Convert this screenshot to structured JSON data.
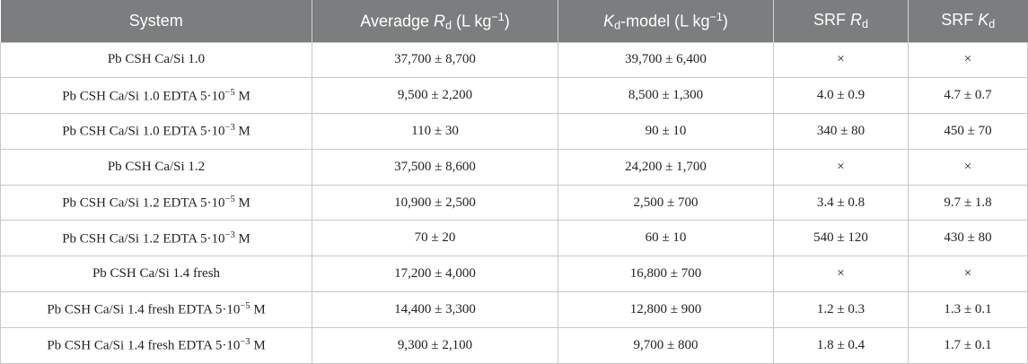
{
  "table": {
    "headers": {
      "system": "System",
      "avg_rd_prefix": "Averadge ",
      "avg_rd_symbol": "R",
      "avg_rd_sub": "d",
      "avg_rd_unit_open": " (L kg",
      "avg_rd_unit_sup": "−1",
      "avg_rd_unit_close": ")",
      "kd_symbol": "K",
      "kd_sub": "d",
      "kd_unit_open": "-model (L kg",
      "kd_unit_sup": "−1",
      "kd_unit_close": ")",
      "srf_rd_prefix": "SRF ",
      "srf_rd_symbol": "R",
      "srf_rd_sub": "d",
      "srf_kd_prefix": "SRF ",
      "srf_kd_symbol": "K",
      "srf_kd_sub": "d"
    },
    "rows": [
      {
        "system": "Pb CSH Ca/Si 1.0",
        "sup": "",
        "unit": "",
        "avg_rd": "37,700 ± 8,700",
        "kd_model": "39,700 ± 6,400",
        "srf_rd": "×",
        "srf_kd": "×"
      },
      {
        "system": "Pb CSH Ca/Si 1.0 EDTA 5·10",
        "sup": "−5",
        "unit": " M",
        "avg_rd": "9,500 ± 2,200",
        "kd_model": "8,500 ± 1,300",
        "srf_rd": "4.0 ± 0.9",
        "srf_kd": "4.7 ± 0.7"
      },
      {
        "system": "Pb CSH Ca/Si 1.0 EDTA 5·10",
        "sup": "−3",
        "unit": " M",
        "avg_rd": "110 ± 30",
        "kd_model": "90 ± 10",
        "srf_rd": "340 ± 80",
        "srf_kd": "450 ± 70"
      },
      {
        "system": "Pb CSH Ca/Si 1.2",
        "sup": "",
        "unit": "",
        "avg_rd": "37,500 ± 8,600",
        "kd_model": "24,200 ± 1,700",
        "srf_rd": "×",
        "srf_kd": "×"
      },
      {
        "system": "Pb CSH Ca/Si 1.2 EDTA 5·10",
        "sup": "−5",
        "unit": " M",
        "avg_rd": "10,900 ± 2,500",
        "kd_model": "2,500 ± 700",
        "srf_rd": "3.4 ± 0.8",
        "srf_kd": "9.7 ± 1.8"
      },
      {
        "system": "Pb CSH Ca/Si 1.2 EDTA 5·10",
        "sup": "−3",
        "unit": " M",
        "avg_rd": "70 ± 20",
        "kd_model": "60 ± 10",
        "srf_rd": "540 ± 120",
        "srf_kd": "430 ± 80"
      },
      {
        "system": "Pb CSH Ca/Si 1.4 fresh",
        "sup": "",
        "unit": "",
        "avg_rd": "17,200 ± 4,000",
        "kd_model": "16,800 ± 700",
        "srf_rd": "×",
        "srf_kd": "×"
      },
      {
        "system": "Pb CSH Ca/Si 1.4 fresh EDTA 5·10",
        "sup": "−5",
        "unit": " M",
        "avg_rd": "14,400 ± 3,300",
        "kd_model": "12,800 ± 900",
        "srf_rd": "1.2 ± 0.3",
        "srf_kd": "1.3 ± 0.1"
      },
      {
        "system": "Pb CSH Ca/Si 1.4 fresh EDTA 5·10",
        "sup": "−3",
        "unit": " M",
        "avg_rd": "9,300 ± 2,100",
        "kd_model": "9,700 ± 800",
        "srf_rd": "1.8 ± 0.4",
        "srf_kd": "1.7 ± 0.1"
      }
    ]
  },
  "colors": {
    "header_background": "#7b7d7e",
    "header_text": "#ffffff",
    "grid_lines": "#c8c8c8"
  }
}
